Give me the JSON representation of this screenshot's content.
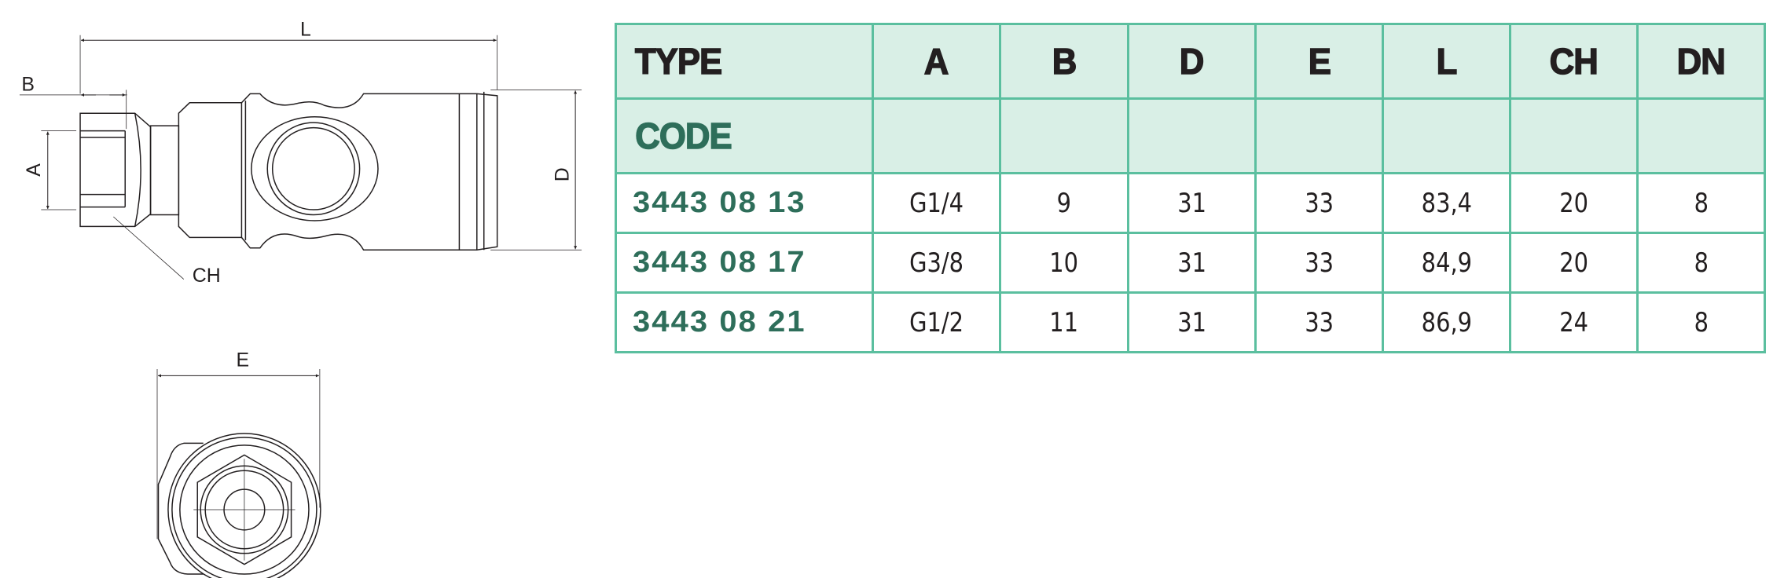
{
  "drawing": {
    "labels": {
      "L": "L",
      "B": "B",
      "A": "A",
      "D": "D",
      "CH": "CH",
      "E": "E"
    }
  },
  "table": {
    "headers": [
      "TYPE",
      "A",
      "B",
      "D",
      "E",
      "L",
      "CH",
      "DN"
    ],
    "code_label": "CODE",
    "rows": [
      {
        "code": "3443 08 13",
        "A": "G1/4",
        "B": "9",
        "D": "31",
        "E": "33",
        "L": "83,4",
        "CH": "20",
        "DN": "8"
      },
      {
        "code": "3443 08 17",
        "A": "G3/8",
        "B": "10",
        "D": "31",
        "E": "33",
        "L": "84,9",
        "CH": "20",
        "DN": "8"
      },
      {
        "code": "3443 08 21",
        "A": "G1/2",
        "B": "11",
        "D": "31",
        "E": "33",
        "L": "86,9",
        "CH": "24",
        "DN": "8"
      }
    ]
  },
  "colors": {
    "header_bg": "#d9efe6",
    "border": "#5bbf9f",
    "code_text": "#2e6e5a"
  }
}
